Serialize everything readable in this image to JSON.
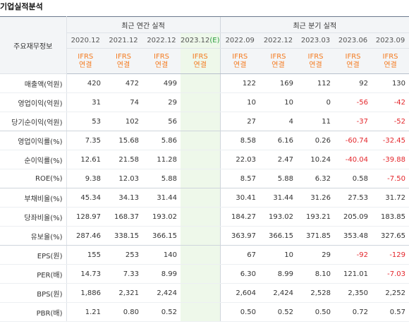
{
  "page_title": "기업실적분석",
  "table": {
    "row_header_label": "주요재무정보",
    "group_annual": "최근 연간 실적",
    "group_quarterly": "최근 분기 실적",
    "columns": [
      {
        "period": "2020.12",
        "est": "",
        "acct": "IFRS",
        "acct2": "연결",
        "estimate": false
      },
      {
        "period": "2021.12",
        "est": "",
        "acct": "IFRS",
        "acct2": "연결",
        "estimate": false
      },
      {
        "period": "2022.12",
        "est": "",
        "acct": "IFRS",
        "acct2": "연결",
        "estimate": false
      },
      {
        "period": "2023.12",
        "est": "(E)",
        "acct": "IFRS",
        "acct2": "연결",
        "estimate": true
      },
      {
        "period": "2022.09",
        "est": "",
        "acct": "IFRS",
        "acct2": "연결",
        "estimate": false
      },
      {
        "period": "2022.12",
        "est": "",
        "acct": "IFRS",
        "acct2": "연결",
        "estimate": false
      },
      {
        "period": "2023.03",
        "est": "",
        "acct": "IFRS",
        "acct2": "연결",
        "estimate": false
      },
      {
        "period": "2023.06",
        "est": "",
        "acct": "IFRS",
        "acct2": "연결",
        "estimate": false
      },
      {
        "period": "2023.09",
        "est": "",
        "acct": "IFRS",
        "acct2": "연결",
        "estimate": false
      }
    ],
    "rows": [
      {
        "label": "매출액(억원)",
        "values": [
          "420",
          "472",
          "499",
          "",
          "122",
          "169",
          "112",
          "92",
          "130"
        ]
      },
      {
        "label": "영업이익(억원)",
        "values": [
          "31",
          "74",
          "29",
          "",
          "10",
          "10",
          "0",
          "-56",
          "-42"
        ]
      },
      {
        "label": "당기순이익(억원)",
        "values": [
          "53",
          "102",
          "56",
          "",
          "27",
          "4",
          "11",
          "-37",
          "-52"
        ]
      },
      {
        "label": "영업이익률(%)",
        "values": [
          "7.35",
          "15.68",
          "5.86",
          "",
          "8.58",
          "6.16",
          "0.26",
          "-60.74",
          "-32.45"
        ]
      },
      {
        "label": "순이익률(%)",
        "values": [
          "12.61",
          "21.58",
          "11.28",
          "",
          "22.03",
          "2.47",
          "10.24",
          "-40.04",
          "-39.88"
        ]
      },
      {
        "label": "ROE(%)",
        "values": [
          "9.38",
          "12.03",
          "5.88",
          "",
          "8.57",
          "5.88",
          "6.32",
          "0.58",
          "-7.50"
        ]
      },
      {
        "label": "부채비율(%)",
        "values": [
          "45.34",
          "34.13",
          "31.44",
          "",
          "30.41",
          "31.44",
          "31.26",
          "27.53",
          "31.72"
        ]
      },
      {
        "label": "당좌비율(%)",
        "values": [
          "128.97",
          "168.37",
          "193.02",
          "",
          "184.27",
          "193.02",
          "193.21",
          "205.09",
          "183.85"
        ]
      },
      {
        "label": "유보율(%)",
        "values": [
          "287.46",
          "338.15",
          "366.15",
          "",
          "363.97",
          "366.15",
          "371.85",
          "353.48",
          "327.65"
        ]
      },
      {
        "label": "EPS(원)",
        "values": [
          "155",
          "253",
          "140",
          "",
          "67",
          "10",
          "29",
          "-92",
          "-129"
        ]
      },
      {
        "label": "PER(배)",
        "values": [
          "14.73",
          "7.33",
          "8.99",
          "",
          "6.30",
          "8.99",
          "8.10",
          "121.01",
          "-7.03"
        ]
      },
      {
        "label": "BPS(원)",
        "values": [
          "1,886",
          "2,321",
          "2,424",
          "",
          "2,604",
          "2,424",
          "2,528",
          "2,350",
          "2,252"
        ]
      },
      {
        "label": "PBR(배)",
        "values": [
          "1.21",
          "0.80",
          "0.52",
          "",
          "0.50",
          "0.52",
          "0.50",
          "0.72",
          "0.57"
        ]
      }
    ]
  },
  "colors": {
    "negative": "#e4262b",
    "ifrs": "#f47b20",
    "estimate_bg": "#eef8ea",
    "estimate_mark": "#2a9d3a"
  }
}
